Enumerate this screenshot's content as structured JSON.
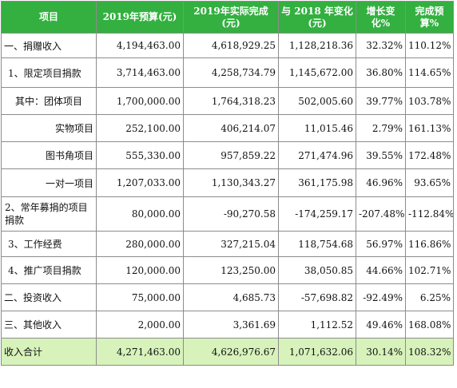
{
  "headers": [
    "项目",
    "2019年预算(元)",
    "2019年实际完成(元)",
    "与 2018 年变化(元)",
    "增长变化%",
    "完成预算%"
  ],
  "rows": [
    {
      "label": "一、捐赠收入",
      "budget": "4,194,463.00",
      "actual": "4,618,929.25",
      "change": "1,128,218.36",
      "growth": "32.32%",
      "completion": "110.12%"
    },
    {
      "label": "1、限定项目捐款",
      "budget": "3,714,463.00",
      "actual": "4,258,734.79",
      "change": "1,145,672.00",
      "growth": "36.80%",
      "completion": "114.65%"
    },
    {
      "label": "其中：团体项目",
      "budget": "1,700,000.00",
      "actual": "1,764,318.23",
      "change": "502,005.60",
      "growth": "39.77%",
      "completion": "103.78%"
    },
    {
      "label": "实物项目",
      "budget": "252,100.00",
      "actual": "406,214.07",
      "change": "11,015.46",
      "growth": "2.79%",
      "completion": "161.13%"
    },
    {
      "label": "图书角项目",
      "budget": "555,330.00",
      "actual": "957,859.22",
      "change": "271,474.96",
      "growth": "39.55%",
      "completion": "172.48%"
    },
    {
      "label": "一对一项目",
      "budget": "1,207,033.00",
      "actual": "1,130,343.27",
      "change": "361,175.98",
      "growth": "46.96%",
      "completion": "93.65%"
    },
    {
      "label": "2、常年募捐的项目捐款",
      "budget": "80,000.00",
      "actual": "-90,270.58",
      "change": "-174,259.17",
      "growth": "-207.48%",
      "completion": "-112.84%"
    },
    {
      "label": "3、工作经费",
      "budget": "280,000.00",
      "actual": "327,215.04",
      "change": "118,754.68",
      "growth": "56.97%",
      "completion": "116.86%"
    },
    {
      "label": "4、推广项目捐款",
      "budget": "120,000.00",
      "actual": "123,250.00",
      "change": "38,050.85",
      "growth": "44.66%",
      "completion": "102.71%"
    },
    {
      "label": "二、投资收入",
      "budget": "75,000.00",
      "actual": "4,685.73",
      "change": "-57,698.82",
      "growth": "-92.49%",
      "completion": "6.25%"
    },
    {
      "label": "三、其他收入",
      "budget": "2,000.00",
      "actual": "3,361.69",
      "change": "1,112.52",
      "growth": "49.46%",
      "completion": "168.08%"
    }
  ],
  "total": {
    "label": "收入合计",
    "budget": "4,271,463.00",
    "actual": "4,626,976.67",
    "change": "1,071,632.06",
    "growth": "30.14%",
    "completion": "108.32%"
  },
  "colors": {
    "header_bg": "#33b040",
    "header_text": "#ffffff",
    "total_bg": "#d7f2bb",
    "grid": "#8c8c8c"
  }
}
